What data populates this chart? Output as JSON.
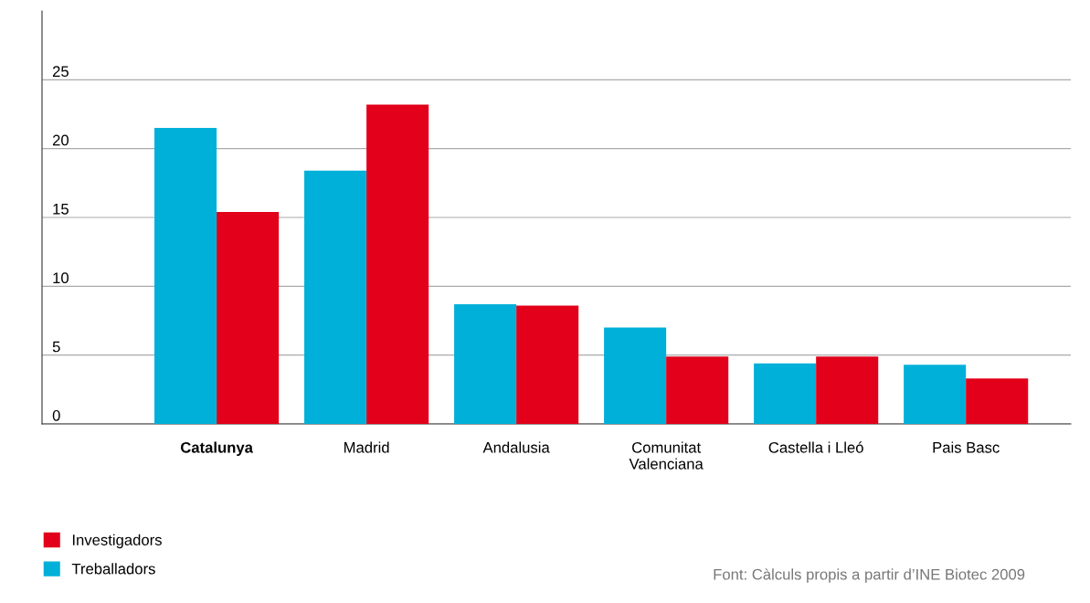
{
  "chart_data": {
    "type": "bar",
    "categories": [
      "Catalunya",
      "Madrid",
      "Andalusia",
      "Comunitat\nValenciana",
      "Castella i Lleó",
      "Pais Basc"
    ],
    "series": [
      {
        "name": "Treballadors",
        "color": "#00b0d8",
        "values": [
          21.5,
          18.4,
          8.7,
          7.0,
          4.4,
          4.3
        ]
      },
      {
        "name": "Investigadors",
        "color": "#e2001a",
        "values": [
          15.4,
          23.2,
          8.6,
          4.9,
          4.9,
          3.3
        ]
      }
    ],
    "ylim": [
      0,
      30
    ],
    "yticks": [
      0,
      5,
      10,
      15,
      20,
      25
    ],
    "grid": "y",
    "legend": "bottom left",
    "annotations": [
      "Font: Càlculs propis a partir d’INE Biotec 2009"
    ]
  }
}
